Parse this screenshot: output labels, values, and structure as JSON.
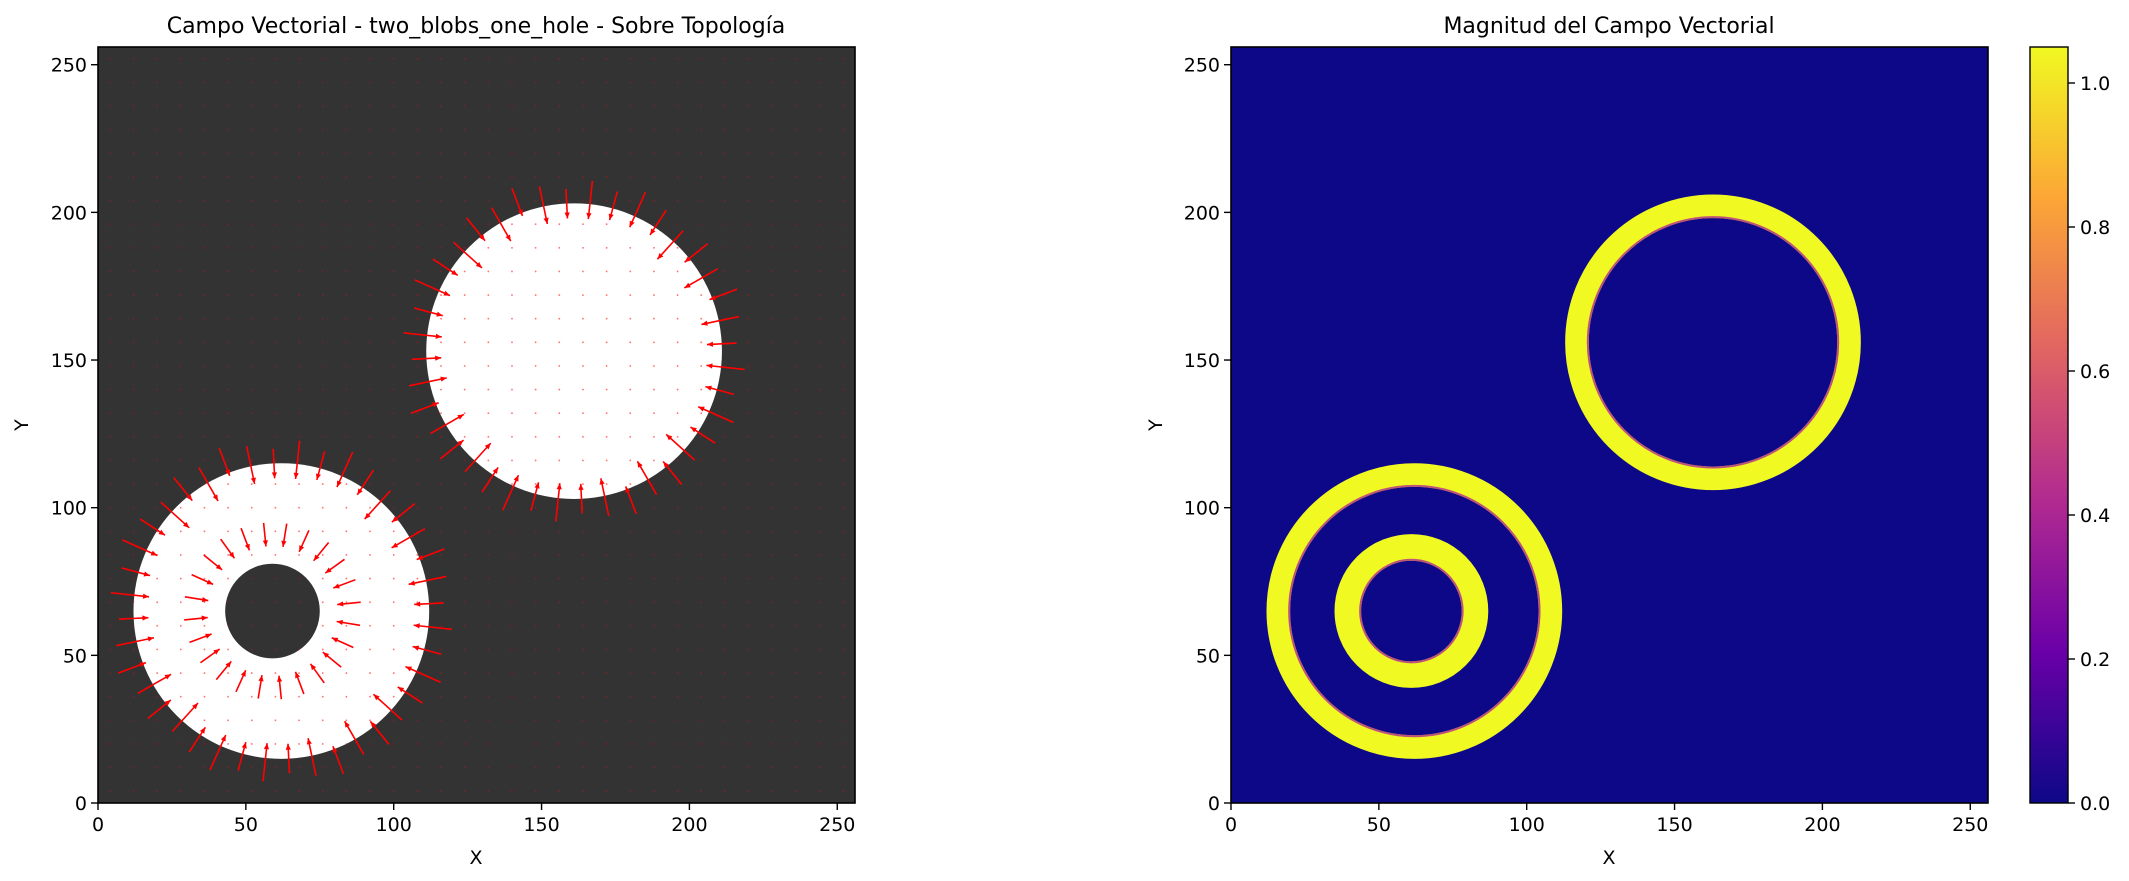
{
  "chart_data": [
    {
      "type": "vector-field",
      "title": "Campo Vectorial - two_blobs_one_hole - Sobre Topología",
      "xlabel": "X",
      "ylabel": "Y",
      "xlim": [
        0,
        256
      ],
      "ylim": [
        0,
        256
      ],
      "xticks": [
        0,
        50,
        100,
        150,
        200,
        250
      ],
      "yticks": [
        0,
        50,
        100,
        150,
        200,
        250
      ],
      "background_color": "#333333",
      "topology_color": "#ffffff",
      "arrow_color": "#ff0000",
      "topology": [
        {
          "shape": "disk",
          "center": [
            62,
            65
          ],
          "radius": 50
        },
        {
          "shape": "hole",
          "center": [
            59,
            65
          ],
          "radius": 16
        },
        {
          "shape": "disk",
          "center": [
            161,
            153
          ],
          "radius": 50
        }
      ],
      "grid": false,
      "legend": "none"
    },
    {
      "type": "heatmap",
      "title": "Magnitud del Campo Vectorial",
      "xlabel": "X",
      "ylabel": "Y",
      "xlim": [
        0,
        256
      ],
      "ylim": [
        0,
        256
      ],
      "xticks": [
        0,
        50,
        100,
        150,
        200,
        250
      ],
      "yticks": [
        0,
        50,
        100,
        150,
        200,
        250
      ],
      "colormap": "plasma",
      "background_value": 0.0,
      "bands": [
        {
          "center": [
            62,
            65
          ],
          "inner_radius": 42,
          "outer_radius": 50,
          "value": 1.0
        },
        {
          "center": [
            61,
            65
          ],
          "inner_radius": 17,
          "outer_radius": 26,
          "value": 1.0
        },
        {
          "center": [
            163,
            156
          ],
          "inner_radius": 42,
          "outer_radius": 50,
          "value": 1.0
        }
      ],
      "colorbar": {
        "range": [
          0.0,
          1.05
        ],
        "ticks": [
          "0.0",
          "0.2",
          "0.4",
          "0.6",
          "0.8",
          "1.0"
        ],
        "colors": [
          "#0d0887",
          "#6a00a8",
          "#b12a90",
          "#e16462",
          "#fca636",
          "#f0f921"
        ]
      },
      "grid": false,
      "legend": "none"
    }
  ]
}
